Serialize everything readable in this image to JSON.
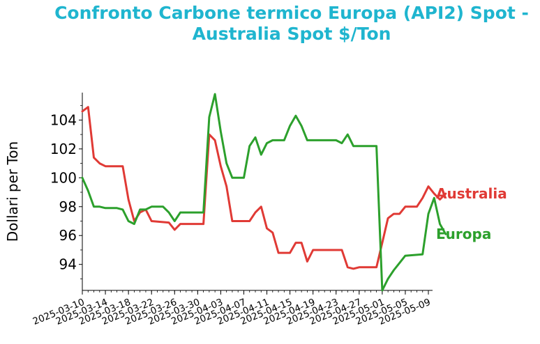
{
  "chart_data": {
    "type": "line",
    "title": "Confronto Carbone termico Europa (API2) Spot - Australia Spot $/Ton",
    "title_lines": [
      "Confronto Carbone termico Europa (API2) Spot -",
      "Australia Spot $/Ton"
    ],
    "xlabel": "",
    "ylabel": "Dollari per Ton",
    "ylim": [
      92.2,
      105.9
    ],
    "y_ticks": [
      94,
      96,
      98,
      100,
      102,
      104
    ],
    "y_tick_labels": [
      "94",
      "96",
      "98",
      "100",
      "102",
      "104"
    ],
    "x_tick_labels": [
      "2025-03-10",
      "2025-03-14",
      "2025-03-18",
      "2025-03-22",
      "2025-03-26",
      "2025-03-30",
      "2025-04-03",
      "2025-04-07",
      "2025-04-11",
      "2025-04-15",
      "2025-04-19",
      "2025-04-23",
      "2025-04-27",
      "2025-05-01",
      "2025-05-05",
      "2025-05-09"
    ],
    "xlim": [
      "2025-03-10",
      "2025-05-09"
    ],
    "grid": false,
    "legend": "labels at right end of lines",
    "series": [
      {
        "name": "Australia",
        "color": "#e03a35",
        "points": [
          [
            "2025-03-10",
            104.6
          ],
          [
            "2025-03-11",
            104.9
          ],
          [
            "2025-03-12",
            101.4
          ],
          [
            "2025-03-13",
            101.0
          ],
          [
            "2025-03-14",
            100.8
          ],
          [
            "2025-03-17",
            100.8
          ],
          [
            "2025-03-18",
            98.5
          ],
          [
            "2025-03-19",
            97.0
          ],
          [
            "2025-03-20",
            97.6
          ],
          [
            "2025-03-21",
            97.8
          ],
          [
            "2025-03-22",
            97.0
          ],
          [
            "2025-03-25",
            96.9
          ],
          [
            "2025-03-26",
            96.4
          ],
          [
            "2025-03-27",
            96.8
          ],
          [
            "2025-03-31",
            96.8
          ],
          [
            "2025-04-01",
            103.0
          ],
          [
            "2025-04-02",
            102.6
          ],
          [
            "2025-04-03",
            100.8
          ],
          [
            "2025-04-04",
            99.4
          ],
          [
            "2025-04-05",
            97.0
          ],
          [
            "2025-04-08",
            97.0
          ],
          [
            "2025-04-09",
            97.6
          ],
          [
            "2025-04-10",
            98.0
          ],
          [
            "2025-04-11",
            96.5
          ],
          [
            "2025-04-12",
            96.2
          ],
          [
            "2025-04-13",
            94.8
          ],
          [
            "2025-04-15",
            94.8
          ],
          [
            "2025-04-16",
            95.5
          ],
          [
            "2025-04-17",
            95.5
          ],
          [
            "2025-04-18",
            94.2
          ],
          [
            "2025-04-19",
            95.0
          ],
          [
            "2025-04-24",
            95.0
          ],
          [
            "2025-04-25",
            93.8
          ],
          [
            "2025-04-26",
            93.7
          ],
          [
            "2025-04-27",
            93.8
          ],
          [
            "2025-04-30",
            93.8
          ],
          [
            "2025-05-01",
            95.5
          ],
          [
            "2025-05-02",
            97.2
          ],
          [
            "2025-05-03",
            97.5
          ],
          [
            "2025-05-04",
            97.5
          ],
          [
            "2025-05-05",
            98.0
          ],
          [
            "2025-05-07",
            98.0
          ],
          [
            "2025-05-08",
            98.6
          ],
          [
            "2025-05-09",
            99.4
          ],
          [
            "2025-05-10",
            98.9
          ],
          [
            "2025-05-11",
            98.5
          ],
          [
            "2025-05-12",
            98.9
          ]
        ]
      },
      {
        "name": "Europa",
        "color": "#2ca02c",
        "points": [
          [
            "2025-03-10",
            100.0
          ],
          [
            "2025-03-11",
            99.1
          ],
          [
            "2025-03-12",
            98.0
          ],
          [
            "2025-03-13",
            98.0
          ],
          [
            "2025-03-14",
            97.9
          ],
          [
            "2025-03-16",
            97.9
          ],
          [
            "2025-03-17",
            97.8
          ],
          [
            "2025-03-18",
            97.0
          ],
          [
            "2025-03-19",
            96.8
          ],
          [
            "2025-03-20",
            97.8
          ],
          [
            "2025-03-21",
            97.8
          ],
          [
            "2025-03-22",
            98.0
          ],
          [
            "2025-03-24",
            98.0
          ],
          [
            "2025-03-25",
            97.6
          ],
          [
            "2025-03-26",
            97.0
          ],
          [
            "2025-03-27",
            97.6
          ],
          [
            "2025-03-31",
            97.6
          ],
          [
            "2025-04-01",
            104.2
          ],
          [
            "2025-04-02",
            105.8
          ],
          [
            "2025-04-03",
            103.2
          ],
          [
            "2025-04-04",
            101.0
          ],
          [
            "2025-04-05",
            100.0
          ],
          [
            "2025-04-07",
            100.0
          ],
          [
            "2025-04-08",
            102.2
          ],
          [
            "2025-04-09",
            102.8
          ],
          [
            "2025-04-10",
            101.6
          ],
          [
            "2025-04-11",
            102.4
          ],
          [
            "2025-04-12",
            102.6
          ],
          [
            "2025-04-14",
            102.6
          ],
          [
            "2025-04-15",
            103.6
          ],
          [
            "2025-04-16",
            104.3
          ],
          [
            "2025-04-17",
            103.6
          ],
          [
            "2025-04-18",
            102.6
          ],
          [
            "2025-04-23",
            102.6
          ],
          [
            "2025-04-24",
            102.4
          ],
          [
            "2025-04-25",
            103.0
          ],
          [
            "2025-04-26",
            102.2
          ],
          [
            "2025-04-30",
            102.2
          ],
          [
            "2025-05-01",
            92.2
          ],
          [
            "2025-05-02",
            93.0
          ],
          [
            "2025-05-03",
            93.6
          ],
          [
            "2025-05-04",
            94.1
          ],
          [
            "2025-05-05",
            94.6
          ],
          [
            "2025-05-08",
            94.7
          ],
          [
            "2025-05-09",
            97.5
          ],
          [
            "2025-05-10",
            98.6
          ],
          [
            "2025-05-11",
            96.8
          ],
          [
            "2025-05-12",
            96.1
          ]
        ]
      }
    ]
  }
}
